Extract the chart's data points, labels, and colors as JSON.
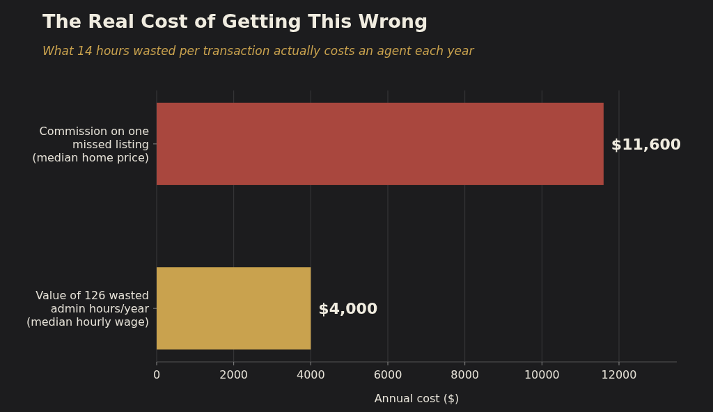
{
  "chart_data": {
    "type": "bar",
    "orientation": "horizontal",
    "title": "The Real Cost of Getting This Wrong",
    "subtitle": "What 14 hours wasted per transaction actually costs an agent each year",
    "xlabel": "Annual cost ($)",
    "categories": [
      "Commission on one\nmissed listing\n(median home price)",
      "Value of 126 wasted\nadmin hours/year\n(median hourly wage)"
    ],
    "values": [
      11600,
      4000
    ],
    "colors": [
      "#a9473e",
      "#c9a24e"
    ],
    "value_labels": [
      "$11,600",
      "$4,000"
    ],
    "xlim": [
      0,
      13500
    ],
    "xticks": [
      0,
      2000,
      4000,
      6000,
      8000,
      10000,
      12000
    ],
    "grid": "x"
  }
}
